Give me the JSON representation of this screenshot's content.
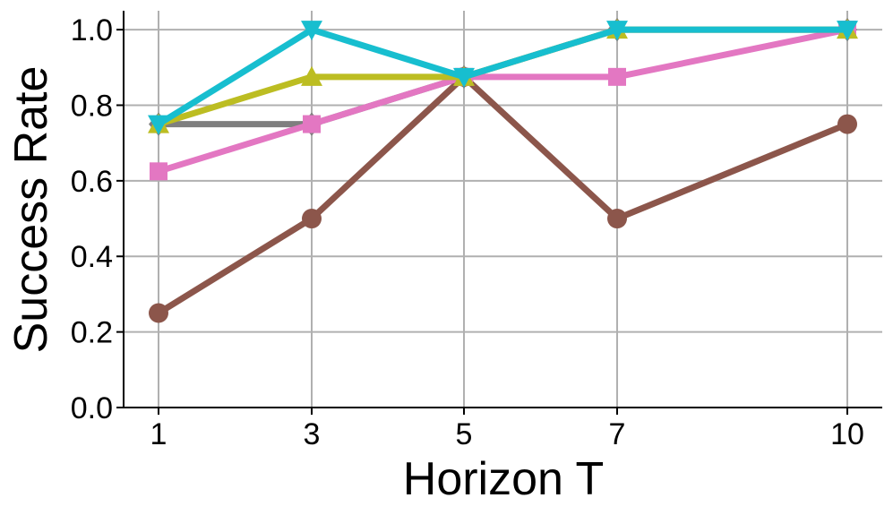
{
  "chart_data": {
    "type": "line",
    "xlabel": "Horizon T",
    "ylabel": "Success Rate",
    "x": [
      1,
      3,
      5,
      7,
      10
    ],
    "x_tick_labels": [
      "1",
      "3",
      "5",
      "7",
      "10"
    ],
    "y_ticks": [
      0.0,
      0.2,
      0.4,
      0.6,
      0.8,
      1.0
    ],
    "y_tick_labels": [
      "0.0",
      "0.2",
      "0.4",
      "0.6",
      "0.8",
      "1.0"
    ],
    "ylim": [
      0.0,
      1.05
    ],
    "grid": true,
    "series": [
      {
        "values": [
          0.75,
          0.75,
          0.875,
          1.0,
          1.0
        ],
        "color": "#7f7f7f",
        "marker": "diamond"
      },
      {
        "values": [
          0.25,
          0.5,
          0.875,
          0.5,
          0.75
        ],
        "color": "#8c564b",
        "marker": "circle"
      },
      {
        "values": [
          0.625,
          0.75,
          0.875,
          0.875,
          1.0
        ],
        "color": "#e377c2",
        "marker": "square"
      },
      {
        "values": [
          0.75,
          0.875,
          0.875,
          1.0,
          1.0
        ],
        "color": "#bcbd22",
        "marker": "triangle-up"
      },
      {
        "values": [
          0.75,
          1.0,
          0.875,
          1.0,
          1.0
        ],
        "color": "#17becf",
        "marker": "triangle-down"
      }
    ]
  }
}
